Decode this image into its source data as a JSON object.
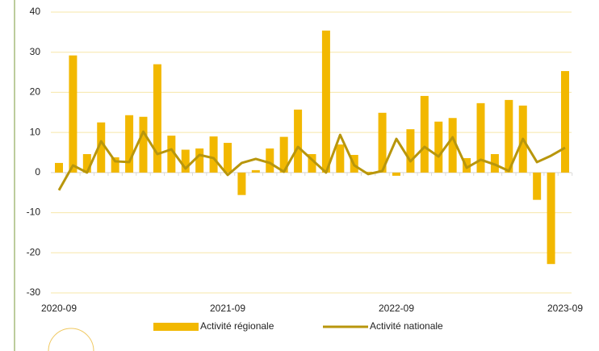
{
  "chart_data": {
    "type": "bar",
    "categories": [
      "2020-09",
      null,
      null,
      null,
      null,
      null,
      null,
      null,
      null,
      null,
      null,
      null,
      "2021-09",
      null,
      null,
      null,
      null,
      null,
      null,
      null,
      null,
      null,
      null,
      null,
      "2022-09",
      null,
      null,
      null,
      null,
      null,
      null,
      null,
      null,
      null,
      null,
      null,
      "2023-09"
    ],
    "series": [
      {
        "name": "Activité régionale",
        "type": "bar",
        "color": "#f2b800",
        "values": [
          2.4,
          29.2,
          4.6,
          12.5,
          3.8,
          14.3,
          13.9,
          27,
          9.2,
          5.7,
          6,
          9,
          7.4,
          -5.6,
          0.6,
          6,
          8.9,
          15.7,
          4.6,
          35.4,
          7,
          4.4,
          0.2,
          14.9,
          -0.8,
          10.8,
          19.1,
          12.7,
          13.6,
          3.6,
          17.3,
          4.6,
          18.1,
          16.7,
          -6.8,
          -22.8,
          25.3
        ]
      },
      {
        "name": "Activité nationale",
        "type": "line",
        "color": "#b8960c",
        "values": [
          -4.4,
          1.8,
          0,
          7.8,
          2.8,
          2.6,
          10.2,
          4.6,
          5.8,
          1,
          4.4,
          3.6,
          -0.6,
          2.4,
          3.4,
          2.4,
          0.2,
          6.4,
          3.2,
          0,
          9.4,
          1.8,
          -0.4,
          0.4,
          8.4,
          2.8,
          6.4,
          4,
          8.8,
          1.2,
          3.2,
          2,
          0.4,
          8.4,
          2.6,
          4.2,
          6.2
        ]
      }
    ],
    "ylim": [
      -30,
      40
    ],
    "yticks": [
      -30,
      -20,
      -10,
      0,
      10,
      20,
      30,
      40
    ],
    "grid": true,
    "legend": "bottom"
  }
}
